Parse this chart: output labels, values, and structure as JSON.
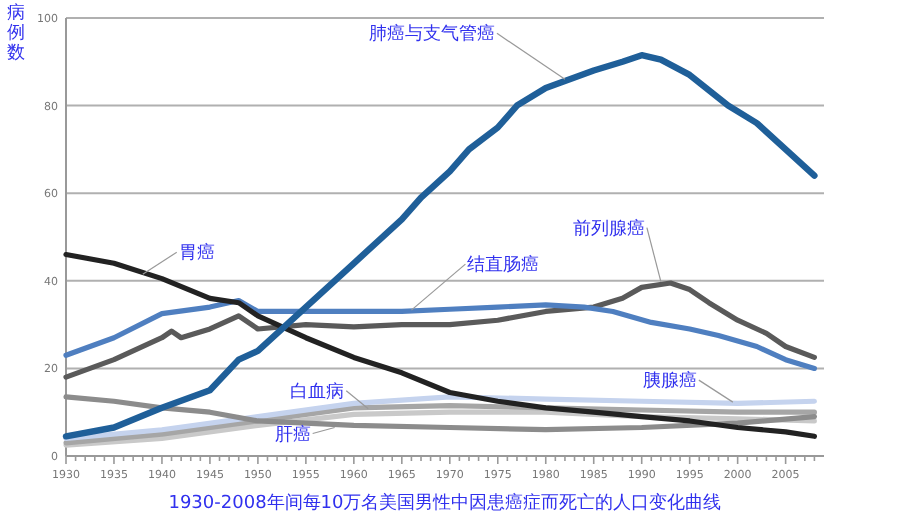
{
  "chart_data": {
    "type": "line",
    "title": "1930-2008年间每10万名美国男性中因患癌症而死亡的人口变化曲线",
    "ylabel": "病例数",
    "xlim": [
      1930,
      2009
    ],
    "ylim": [
      0,
      100
    ],
    "xticks": [
      1930,
      {
        "value": 1931,
        "label": null
      },
      {
        "value": 1932,
        "label": null
      },
      {
        "value": 1933,
        "label": null
      },
      {
        "value": 1934,
        "label": null
      },
      1935,
      {
        "value": 1936,
        "label": null
      },
      {
        "value": 1937,
        "label": null
      },
      {
        "value": 1938,
        "label": null
      },
      {
        "value": 1939,
        "label": null
      },
      1940,
      {
        "value": 1941,
        "label": null
      },
      {
        "value": 1942,
        "label": null
      },
      {
        "value": 1943,
        "label": null
      },
      {
        "value": 1944,
        "label": null
      },
      1945,
      {
        "value": 1946,
        "label": null
      },
      {
        "value": 1947,
        "label": null
      },
      {
        "value": 1948,
        "label": null
      },
      {
        "value": 1949,
        "label": null
      },
      1950,
      {
        "value": 1951,
        "label": null
      },
      {
        "value": 1952,
        "label": null
      },
      {
        "value": 1953,
        "label": null
      },
      {
        "value": 1954,
        "label": null
      },
      1955,
      {
        "value": 1956,
        "label": null
      },
      {
        "value": 1957,
        "label": null
      },
      {
        "value": 1958,
        "label": null
      },
      {
        "value": 1959,
        "label": null
      },
      1960,
      {
        "value": 1961,
        "label": null
      },
      {
        "value": 1962,
        "label": null
      },
      {
        "value": 1963,
        "label": null
      },
      {
        "value": 1964,
        "label": null
      },
      1965,
      {
        "value": 1966,
        "label": null
      },
      {
        "value": 1967,
        "label": null
      },
      {
        "value": 1968,
        "label": null
      },
      {
        "value": 1969,
        "label": null
      },
      1970,
      {
        "value": 1971,
        "label": null
      },
      {
        "value": 1972,
        "label": null
      },
      {
        "value": 1973,
        "label": null
      },
      {
        "value": 1974,
        "label": null
      },
      1975,
      {
        "value": 1976,
        "label": null
      },
      {
        "value": 1977,
        "label": null
      },
      {
        "value": 1978,
        "label": null
      },
      {
        "value": 1979,
        "label": null
      },
      1980,
      {
        "value": 1981,
        "label": null
      },
      {
        "value": 1982,
        "label": null
      },
      {
        "value": 1983,
        "label": null
      },
      {
        "value": 1984,
        "label": null
      },
      1985,
      {
        "value": 1986,
        "label": null
      },
      {
        "value": 1987,
        "label": null
      },
      {
        "value": 1988,
        "label": null
      },
      {
        "value": 1989,
        "label": null
      },
      1990,
      {
        "value": 1991,
        "label": null
      },
      {
        "value": 1992,
        "label": null
      },
      {
        "value": 1993,
        "label": null
      },
      {
        "value": 1994,
        "label": null
      },
      1995,
      {
        "value": 1996,
        "label": null
      },
      {
        "value": 1997,
        "label": null
      },
      {
        "value": 1998,
        "label": null
      },
      {
        "value": 1999,
        "label": null
      },
      2000,
      {
        "value": 2001,
        "label": null
      },
      {
        "value": 2002,
        "label": null
      },
      {
        "value": 2003,
        "label": null
      },
      {
        "value": 2004,
        "label": null
      },
      2005,
      {
        "value": 2006,
        "label": null
      },
      {
        "value": 2007,
        "label": null
      },
      {
        "value": 2008,
        "label": null
      }
    ],
    "yticks": [
      0,
      20,
      40,
      60,
      80,
      100
    ],
    "grid": "y",
    "marker": "none",
    "line_style": "solid",
    "series": [
      {
        "color": "#c9c9c9",
        "x": [
          1930,
          1940,
          1950,
          1960,
          1970,
          1980,
          1990,
          2000,
          2008
        ],
        "values": [
          2.5,
          4,
          7,
          9.5,
          10,
          10,
          9,
          8.5,
          8
        ]
      },
      {
        "color": "#a6a6a6",
        "x": [
          1930,
          1940,
          1950,
          1960,
          1970,
          1980,
          1990,
          2000,
          2008
        ],
        "values": [
          3,
          5,
          8,
          11,
          11.5,
          11,
          10.5,
          10,
          10
        ]
      },
      {
        "color": "#c5d3ee",
        "x": [
          1930,
          1940,
          1950,
          1960,
          1970,
          1980,
          1990,
          2000,
          2008
        ],
        "values": [
          4,
          6,
          9,
          12,
          13.5,
          13,
          12.5,
          12,
          12.5
        ]
      },
      {
        "color": "#8c8c8c",
        "x": [
          1930,
          1935,
          1940,
          1945,
          1950,
          1955,
          1960,
          1970,
          1980,
          1990,
          2000,
          2008
        ],
        "values": [
          13.5,
          12.5,
          11,
          10,
          8,
          7.5,
          7,
          6.5,
          6,
          6.5,
          7.5,
          9
        ]
      },
      {
        "color": "#5a5a5a",
        "x": [
          1930,
          1935,
          1940,
          1941,
          1942,
          1945,
          1948,
          1950,
          1955,
          1960,
          1965,
          1970,
          1975,
          1980,
          1985,
          1988,
          1990,
          1993,
          1995,
          1997,
          2000,
          2003,
          2005,
          2008
        ],
        "values": [
          18,
          22,
          27,
          28.5,
          27,
          29,
          32,
          29,
          30,
          29.5,
          30,
          30,
          31,
          33,
          34,
          36,
          38.5,
          39.5,
          38,
          35,
          31,
          28,
          25,
          22.5
        ]
      },
      {
        "color": "#4f7fc0",
        "x": [
          1930,
          1935,
          1940,
          1945,
          1948,
          1950,
          1955,
          1960,
          1965,
          1970,
          1975,
          1980,
          1984,
          1987,
          1991,
          1995,
          1998,
          2002,
          2005,
          2008
        ],
        "values": [
          23,
          27,
          32.5,
          34,
          35.5,
          33,
          33,
          33,
          33,
          33.5,
          34,
          34.5,
          34,
          33,
          30.5,
          29,
          27.5,
          25,
          22,
          20
        ]
      },
      {
        "color": "#222222",
        "x": [
          1930,
          1935,
          1940,
          1945,
          1948,
          1950,
          1955,
          1960,
          1965,
          1970,
          1975,
          1980,
          1985,
          1990,
          1995,
          2000,
          2005,
          2008
        ],
        "values": [
          46,
          44,
          40.5,
          36,
          35,
          32,
          27,
          22.5,
          19,
          14.5,
          12.5,
          11,
          10,
          9,
          8,
          6.5,
          5.5,
          4.5
        ]
      },
      {
        "color": "#1f5f99",
        "x": [
          1930,
          1935,
          1940,
          1945,
          1948,
          1950,
          1955,
          1958,
          1960,
          1965,
          1967,
          1970,
          1972,
          1975,
          1977,
          1980,
          1985,
          1988,
          1990,
          1992,
          1995,
          1999,
          2002,
          2005,
          2008
        ],
        "values": [
          4.5,
          6.5,
          11,
          15,
          22,
          24,
          34,
          40,
          44,
          54,
          59,
          65,
          70,
          75,
          80,
          84,
          88,
          90,
          91.5,
          90.5,
          87,
          80,
          76,
          70,
          64
        ]
      }
    ],
    "annotations": [
      {
        "text": "肺癌与支气管癌",
        "x": 1982,
        "y": 86
      },
      {
        "text": "胃癌",
        "x": 1938,
        "y": 41.5
      },
      {
        "text": "结直肠癌",
        "x": 1966,
        "y": 33.3
      },
      {
        "text": "前列腺癌",
        "x": 1992,
        "y": 39.8
      },
      {
        "text": "白血病",
        "x": 1961.5,
        "y": 10.8
      },
      {
        "text": "肝癌",
        "x": 1958,
        "y": 6.5
      },
      {
        "text": "胰腺癌",
        "x": 1999.5,
        "y": 12.3
      }
    ]
  }
}
